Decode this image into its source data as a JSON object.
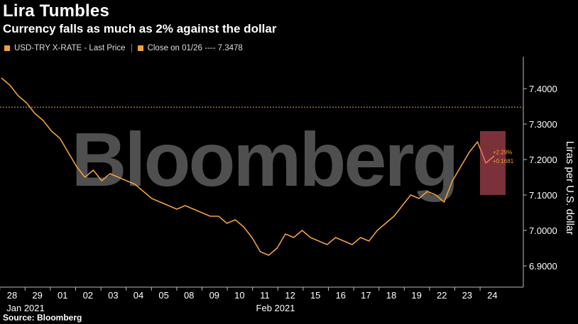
{
  "title": "Lira Tumbles",
  "subtitle": "Currency falls as much as 2% against the dollar",
  "legend": {
    "series_label": "USD-TRY X-RATE - Last Price",
    "close_label": "Close on 01/26 ---- 7.3478"
  },
  "source": "Source: Bloomberg",
  "watermark": "Bloomberg",
  "colors": {
    "series": "#f0a040",
    "background": "#000000",
    "highlight": "#e05a6a"
  },
  "chart_data": {
    "type": "line",
    "ylabel": "Liras per U.S. dollar",
    "ylim": [
      6.84,
      7.49
    ],
    "yticks": [
      "6.9000",
      "7.0000",
      "7.1000",
      "7.2000",
      "7.3000",
      "7.4000"
    ],
    "ytick_values": [
      6.9,
      7.0,
      7.1,
      7.2,
      7.3,
      7.4
    ],
    "x_tick_labels": [
      "28",
      "29",
      "01",
      "02",
      "03",
      "04",
      "05",
      "08",
      "09",
      "10",
      "11",
      "12",
      "15",
      "16",
      "17",
      "18",
      "19",
      "22",
      "23",
      "24"
    ],
    "x_month_labels": [
      "Jan 2021",
      "Feb 2021"
    ],
    "reference_line": {
      "value": 7.3478
    },
    "annotations": [
      "+2.29%",
      "+0.1681"
    ],
    "series": [
      {
        "values": [
          7.43,
          7.41,
          7.38,
          7.36,
          7.33,
          7.31,
          7.28,
          7.26,
          7.22,
          7.18,
          7.15,
          7.17,
          7.14,
          7.16,
          7.15,
          7.14,
          7.13,
          7.11,
          7.09,
          7.08,
          7.07,
          7.06,
          7.07,
          7.06,
          7.05,
          7.04,
          7.04,
          7.02,
          7.03,
          7.01,
          6.98,
          6.94,
          6.93,
          6.95,
          6.99,
          6.98,
          7.0,
          6.98,
          6.97,
          6.96,
          6.98,
          6.97,
          6.96,
          6.98,
          6.97,
          7.0,
          7.02,
          7.04,
          7.07,
          7.1,
          7.09,
          7.11,
          7.1,
          7.08,
          7.14,
          7.18,
          7.22,
          7.25,
          7.19,
          7.21
        ]
      }
    ]
  }
}
